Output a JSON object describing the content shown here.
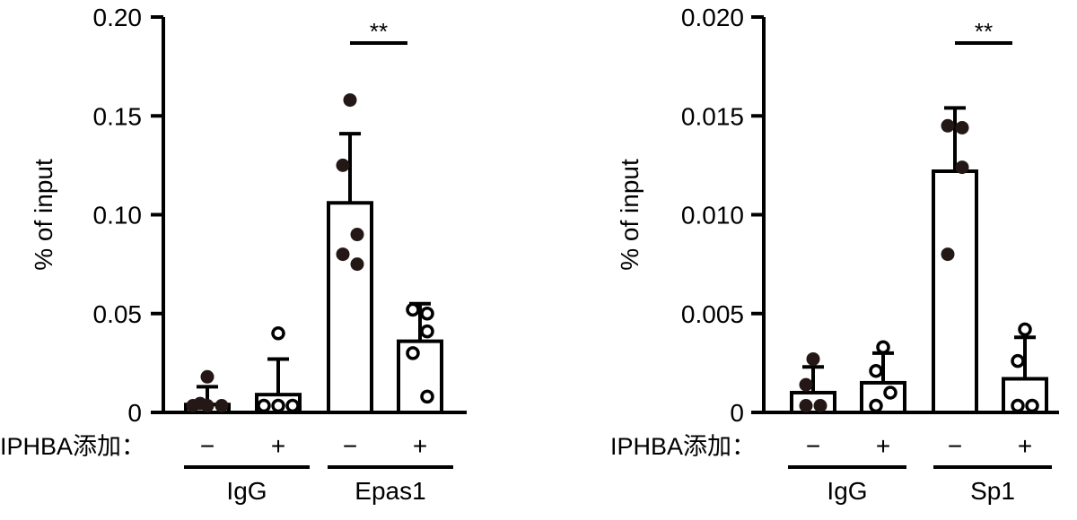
{
  "chart_data": [
    {
      "type": "bar",
      "ylabel": "% of input",
      "ylim": [
        0,
        0.2
      ],
      "ytick_labels": [
        "0",
        "0.05",
        "0.10",
        "0.15",
        "0.20"
      ],
      "treatment_label": "IPHBA添加：",
      "treatment_signs": [
        "−",
        "+",
        "−",
        "+"
      ],
      "groups": [
        "IgG",
        "Epas1"
      ],
      "bars": [
        {
          "mean": 0.004,
          "sd": 0.009,
          "filled": true,
          "points": [
            0.018,
            0.0045,
            0.0,
            0.0,
            0.0
          ]
        },
        {
          "mean": 0.009,
          "sd": 0.018,
          "filled": false,
          "points": [
            0.04,
            0.0,
            0.0,
            0.0
          ]
        },
        {
          "mean": 0.106,
          "sd": 0.035,
          "filled": true,
          "points": [
            0.158,
            0.125,
            0.09,
            0.08,
            0.075
          ]
        },
        {
          "mean": 0.036,
          "sd": 0.019,
          "filled": false,
          "points": [
            0.052,
            0.05,
            0.041,
            0.03,
            0.008
          ]
        }
      ],
      "significance": {
        "between": [
          2,
          3
        ],
        "label": "**"
      }
    },
    {
      "type": "bar",
      "ylabel": "% of input",
      "ylim": [
        0,
        0.02
      ],
      "ytick_labels": [
        "0",
        "0.005",
        "0.010",
        "0.015",
        "0.020"
      ],
      "treatment_label": "IPHBA添加：",
      "treatment_signs": [
        "−",
        "+",
        "−",
        "+"
      ],
      "groups": [
        "IgG",
        "Sp1"
      ],
      "bars": [
        {
          "mean": 0.001,
          "sd": 0.0013,
          "filled": true,
          "points": [
            0.0027,
            0.0014,
            0.0002,
            0.0002
          ]
        },
        {
          "mean": 0.0015,
          "sd": 0.0015,
          "filled": false,
          "points": [
            0.0033,
            0.0021,
            0.001,
            0.0002
          ]
        },
        {
          "mean": 0.0122,
          "sd": 0.0032,
          "filled": true,
          "points": [
            0.0145,
            0.0144,
            0.0124,
            0.008
          ]
        },
        {
          "mean": 0.0017,
          "sd": 0.0021,
          "filled": false,
          "points": [
            0.0042,
            0.0026,
            0.0,
            0.0
          ]
        }
      ],
      "significance": {
        "between": [
          2,
          3
        ],
        "label": "**"
      }
    }
  ]
}
